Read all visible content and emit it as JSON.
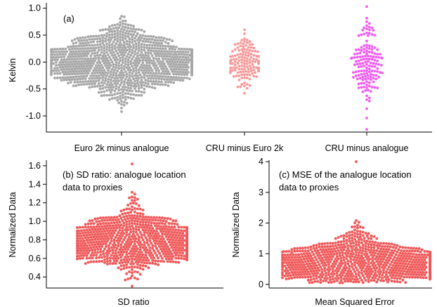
{
  "chart_data": [
    {
      "type": "beeswarm",
      "panel_label": "(a)",
      "ylabel": "Kelvin",
      "ylim": [
        -1.3,
        1.1
      ],
      "yticks": [
        "-1.0",
        "-0.5",
        "0.0",
        "0.5",
        "1.0"
      ],
      "grid": false,
      "series": [
        {
          "name": "Euro 2k minus analogue",
          "color": "#a6a6a6",
          "n_points": 1200,
          "distribution": {
            "mean": 0.0,
            "sd": 0.3,
            "min": -0.92,
            "max": 0.85
          }
        },
        {
          "name": "CRU minus Euro 2k",
          "color": "#f79a9a",
          "n_points": 140,
          "distribution": {
            "mean": 0.0,
            "sd": 0.25,
            "min": -0.58,
            "max": 0.6
          }
        },
        {
          "name": "CRU minus analogue",
          "color": "#ee5cf0",
          "n_points": 150,
          "distribution": {
            "mean": 0.0,
            "sd": 0.35,
            "min": -1.25,
            "max": 1.03
          }
        }
      ]
    },
    {
      "type": "beeswarm",
      "panel_label_lines": [
        "(b) SD ratio: analogue location",
        "data to proxies"
      ],
      "xlabel": "SD ratio",
      "ylabel": "Normalized Data",
      "ylim": [
        0.28,
        1.66
      ],
      "yticks": [
        "0.4",
        "0.6",
        "0.8",
        "1.0",
        "1.2",
        "1.4",
        "1.6"
      ],
      "grid": false,
      "series": [
        {
          "name": "SD ratio",
          "color": "#f0595a",
          "n_points": 1200,
          "distribution": {
            "mode": 0.77,
            "sd_low": 0.13,
            "sd_high": 0.16,
            "min": 0.3,
            "max": 1.62
          }
        }
      ]
    },
    {
      "type": "beeswarm",
      "panel_label_lines": [
        "(c) MSE of the analogue location",
        "data to proxies"
      ],
      "xlabel": "Mean Squared Error",
      "ylabel": "Normalized Data",
      "ylim": [
        -0.12,
        4.05
      ],
      "yticks": [
        "0",
        "1",
        "2",
        "3",
        "4"
      ],
      "grid": false,
      "series": [
        {
          "name": "Mean Squared Error",
          "color": "#f0595a",
          "n_points": 1200,
          "distribution": {
            "mode": 0.62,
            "sd_low": 0.3,
            "sd_high": 0.45,
            "min": 0.05,
            "max": 4.0
          }
        }
      ]
    }
  ]
}
